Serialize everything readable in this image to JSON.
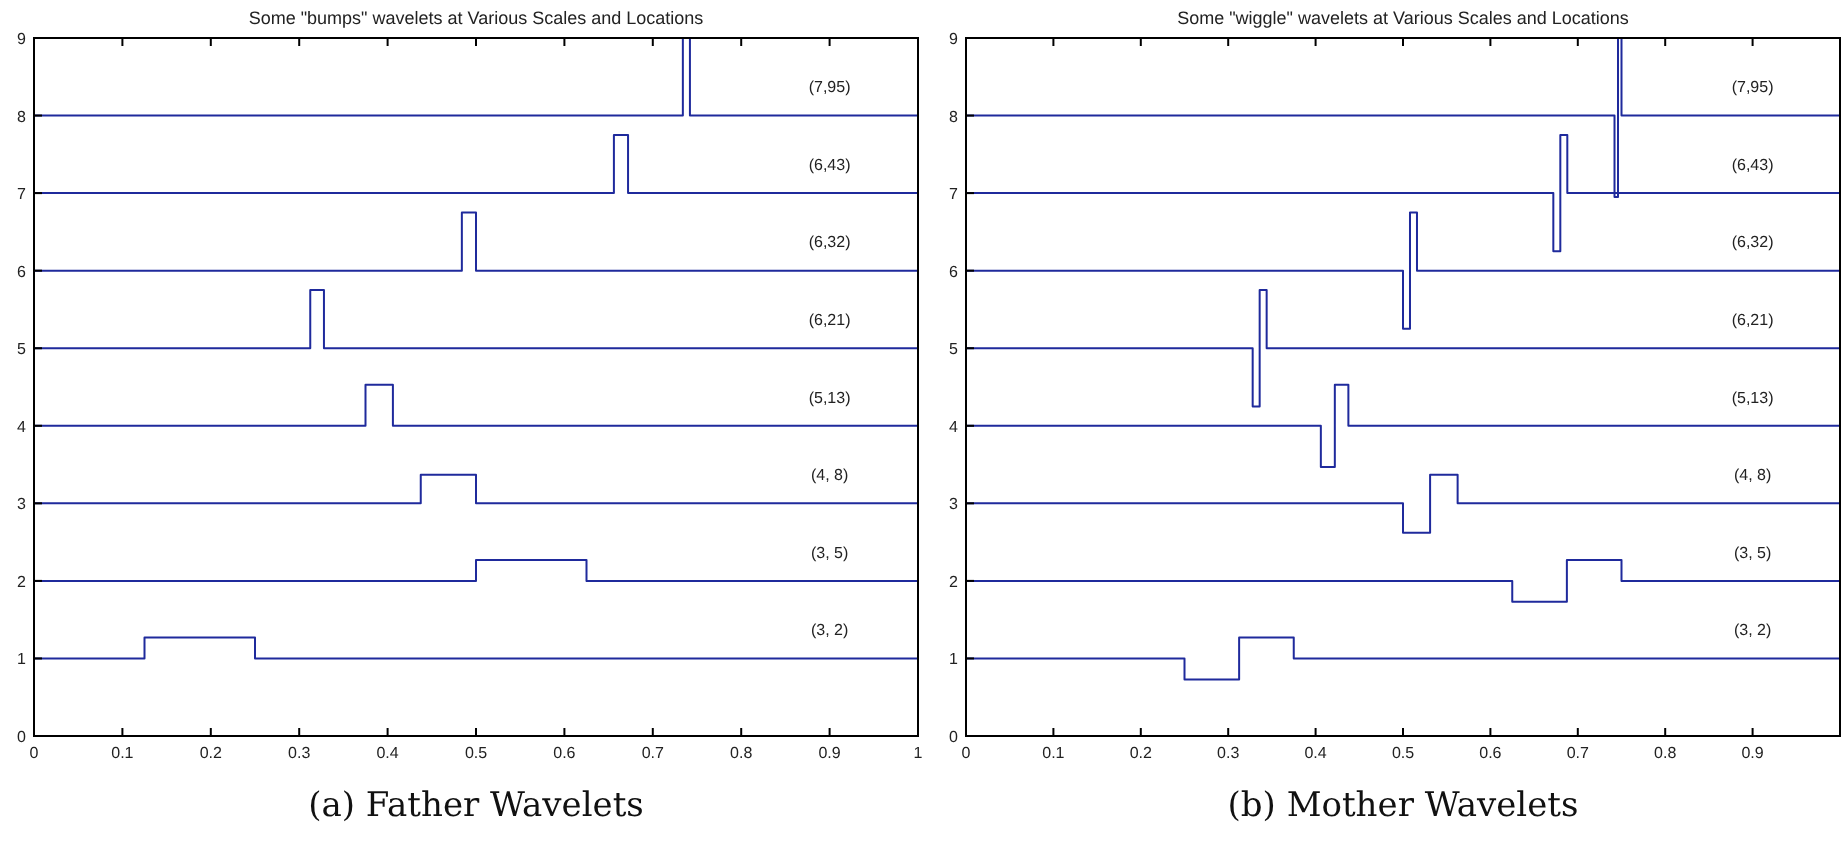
{
  "chart_data": [
    {
      "type": "step",
      "title": "Some \"bumps\" wavelets at Various Scales and Locations",
      "annotations": [
        "(a) Father Wavelets"
      ],
      "xlim": [
        0,
        1
      ],
      "ylim": [
        0,
        9
      ],
      "xticks": [
        0,
        0.1,
        0.2,
        0.3,
        0.4,
        0.5,
        0.6,
        0.7,
        0.8,
        0.9,
        1
      ],
      "yticks": [
        0,
        1,
        2,
        3,
        4,
        5,
        6,
        7,
        8,
        9
      ],
      "series": [
        {
          "name": "(3, 2)",
          "color": "#1f2a9c",
          "x": [
            0,
            0.125,
            0.25,
            1
          ],
          "values": [
            1,
            1.27,
            1,
            1
          ]
        },
        {
          "name": "(3, 5)",
          "color": "#1f2a9c",
          "x": [
            0,
            0.5,
            0.625,
            1
          ],
          "values": [
            2,
            2.27,
            2,
            2
          ]
        },
        {
          "name": "(4, 8)",
          "color": "#1f2a9c",
          "x": [
            0,
            0.4375,
            0.5,
            1
          ],
          "values": [
            3,
            3.37,
            3,
            3
          ]
        },
        {
          "name": "(5,13)",
          "color": "#1f2a9c",
          "x": [
            0,
            0.375,
            0.406,
            1
          ],
          "values": [
            4,
            4.53,
            4,
            4
          ]
        },
        {
          "name": "(6,21)",
          "color": "#1f2a9c",
          "x": [
            0,
            0.3125,
            0.328,
            1
          ],
          "values": [
            5,
            5.75,
            5,
            5
          ]
        },
        {
          "name": "(6,32)",
          "color": "#1f2a9c",
          "x": [
            0,
            0.484,
            0.5,
            1
          ],
          "values": [
            6,
            6.75,
            6,
            6
          ]
        },
        {
          "name": "(6,43)",
          "color": "#1f2a9c",
          "x": [
            0,
            0.656,
            0.672,
            1
          ],
          "values": [
            7,
            7.75,
            7,
            7
          ]
        },
        {
          "name": "(7,95)",
          "color": "#1f2a9c",
          "x": [
            0,
            0.734,
            0.742,
            1
          ],
          "values": [
            8,
            9,
            8,
            8
          ]
        }
      ]
    },
    {
      "type": "step",
      "title": "Some \"wiggle\" wavelets at Various Scales and Locations",
      "annotations": [
        "(b) Mother Wavelets"
      ],
      "xlim": [
        0,
        1
      ],
      "ylim": [
        0,
        9
      ],
      "xticks": [
        0,
        0.1,
        0.2,
        0.3,
        0.4,
        0.5,
        0.6,
        0.7,
        0.8,
        0.9
      ],
      "yticks": [
        0,
        1,
        2,
        3,
        4,
        5,
        6,
        7,
        8,
        9
      ],
      "series": [
        {
          "name": "(3, 2)",
          "color": "#1f2a9c",
          "x": [
            0,
            0.25,
            0.3125,
            0.375,
            1
          ],
          "values": [
            1,
            0.73,
            1.27,
            1,
            1
          ]
        },
        {
          "name": "(3, 5)",
          "color": "#1f2a9c",
          "x": [
            0,
            0.625,
            0.6875,
            0.75,
            1
          ],
          "values": [
            2,
            1.73,
            2.27,
            2,
            2
          ]
        },
        {
          "name": "(4, 8)",
          "color": "#1f2a9c",
          "x": [
            0,
            0.5,
            0.531,
            0.5625,
            1
          ],
          "values": [
            3,
            2.62,
            3.37,
            3,
            3
          ]
        },
        {
          "name": "(5,13)",
          "color": "#1f2a9c",
          "x": [
            0,
            0.406,
            0.422,
            0.4375,
            1
          ],
          "values": [
            4,
            3.47,
            4.53,
            4,
            4
          ]
        },
        {
          "name": "(6,21)",
          "color": "#1f2a9c",
          "x": [
            0,
            0.328,
            0.336,
            0.344,
            1
          ],
          "values": [
            5,
            4.25,
            5.75,
            5,
            5
          ]
        },
        {
          "name": "(6,32)",
          "color": "#1f2a9c",
          "x": [
            0,
            0.5,
            0.508,
            0.516,
            1
          ],
          "values": [
            6,
            5.25,
            6.75,
            6,
            6
          ]
        },
        {
          "name": "(6,43)",
          "color": "#1f2a9c",
          "x": [
            0,
            0.672,
            0.68,
            0.688,
            1
          ],
          "values": [
            7,
            6.25,
            7.75,
            7,
            7
          ]
        },
        {
          "name": "(7,95)",
          "color": "#1f2a9c",
          "x": [
            0,
            0.742,
            0.746,
            0.75,
            1
          ],
          "values": [
            8,
            6.95,
            9,
            8,
            8
          ]
        }
      ]
    }
  ]
}
